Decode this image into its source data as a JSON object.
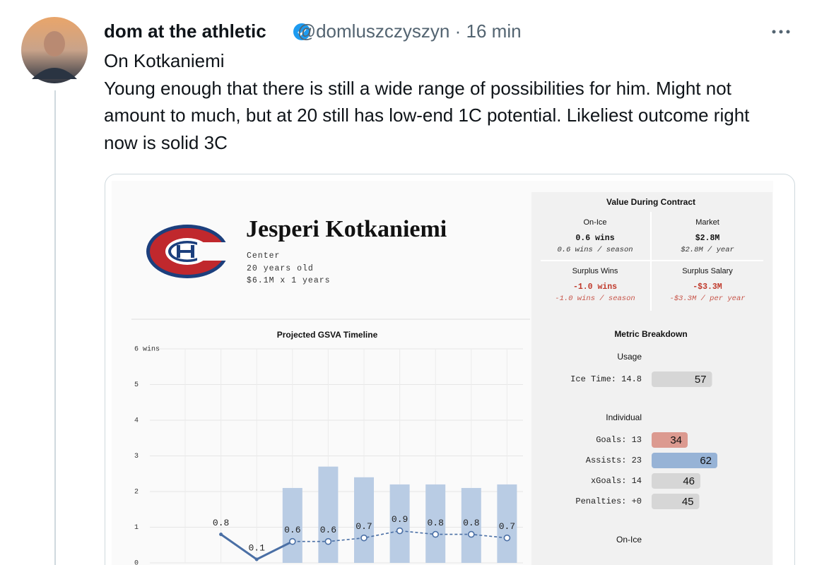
{
  "tweet": {
    "author_name": "dom at the athletic",
    "handle": "@domluszczyszyn",
    "separator": "·",
    "time": "16 min",
    "text": [
      "On Kotkaniemi",
      "Young enough that there is still a wide range of possibilities for him. Might not amount to much, but at 20 still has low-end 1C potential. Likeliest outcome right now is solid 3C"
    ]
  },
  "card": {
    "player": {
      "name": "Jesperi Kotkaniemi",
      "position": "Center",
      "age": "20 years old",
      "contract": "$6.1M x 1 years"
    },
    "value_during_contract": {
      "title": "Value During Contract",
      "cells": [
        {
          "label": "On-Ice",
          "value": "0.6 wins",
          "rate": "0.6 wins / season",
          "color": "#111111"
        },
        {
          "label": "Market",
          "value": "$2.8M",
          "rate": "$2.8M / year",
          "color": "#111111"
        },
        {
          "label": "Surplus Wins",
          "value": "-1.0 wins",
          "rate": "-1.0 wins / season",
          "color": "#c0392b"
        },
        {
          "label": "Surplus Salary",
          "value": "-$3.3M",
          "rate": "-$3.3M / per year",
          "color": "#c0392b"
        }
      ]
    },
    "chart_data": {
      "type": "combo",
      "title": "Projected GSVA Timeline",
      "categories": [
        null,
        null,
        null,
        null,
        null,
        null,
        null,
        null,
        null,
        null
      ],
      "bars": {
        "color": "#b9cce4",
        "values": [
          null,
          null,
          null,
          2.1,
          2.7,
          2.4,
          2.2,
          2.2,
          2.1,
          2.2
        ]
      },
      "line": {
        "color": "#4a6fa5",
        "values": [
          null,
          0.8,
          0.1,
          0.6,
          0.6,
          0.7,
          0.9,
          0.8,
          0.8,
          0.7
        ],
        "dashed_from": 3
      },
      "ylim": [
        0,
        6
      ],
      "yticks": [
        0,
        1,
        2,
        3,
        4,
        5,
        {
          "value": 6,
          "label": "6 wins"
        }
      ],
      "grid": true
    },
    "metric_breakdown": {
      "title": "Metric Breakdown",
      "sections": [
        {
          "title": "Usage",
          "rows": [
            {
              "label": "Ice Time: 14.8",
              "value": 57,
              "color": "#d6d6d6"
            }
          ]
        },
        {
          "title": "Individual",
          "rows": [
            {
              "label": "Goals: 13",
              "value": 34,
              "color": "#dc9a90"
            },
            {
              "label": "Assists: 23",
              "value": 62,
              "color": "#97b3d6"
            },
            {
              "label": "xGoals: 14",
              "value": 46,
              "color": "#d6d6d6"
            },
            {
              "label": "Penalties: +0",
              "value": 45,
              "color": "#d6d6d6"
            }
          ]
        },
        {
          "title": "On-Ice",
          "rows": []
        }
      ]
    }
  }
}
